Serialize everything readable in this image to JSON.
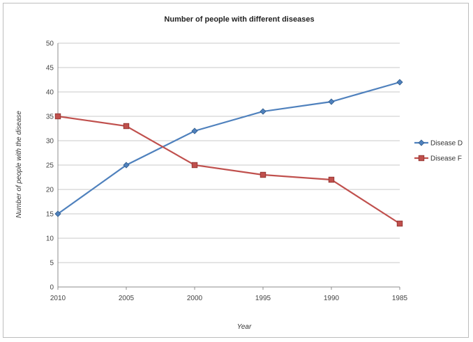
{
  "chart_data": {
    "type": "line",
    "title": "Number of people with different diseases",
    "xlabel": "Year",
    "ylabel": "Number of people with the disease",
    "categories": [
      "2010",
      "2005",
      "2000",
      "1995",
      "1990",
      "1985"
    ],
    "series": [
      {
        "name": "Disease D",
        "values": [
          15,
          25,
          32,
          36,
          38,
          42
        ],
        "color": "#4f81bd",
        "marker": "diamond"
      },
      {
        "name": "Disease F",
        "values": [
          35,
          33,
          25,
          23,
          22,
          13
        ],
        "color": "#c0504d",
        "marker": "square"
      }
    ],
    "ylim": [
      0,
      50
    ],
    "yticks": [
      0,
      5,
      10,
      15,
      20,
      25,
      30,
      35,
      40,
      45,
      50
    ],
    "grid": true,
    "legend": "right"
  }
}
